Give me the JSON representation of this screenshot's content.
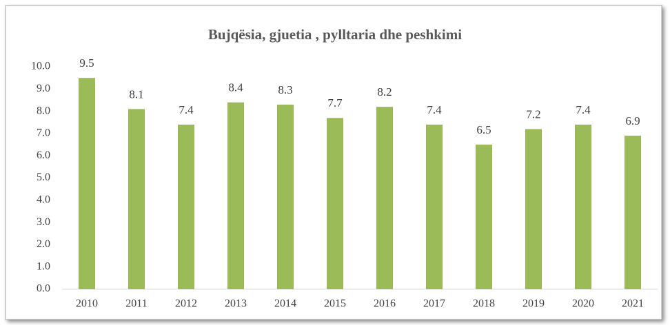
{
  "chart_data": {
    "type": "bar",
    "title": "Bujqësia, gjuetia , pylltaria dhe peshkimi",
    "categories": [
      "2010",
      "2011",
      "2012",
      "2013",
      "2014",
      "2015",
      "2016",
      "2017",
      "2018",
      "2019",
      "2020",
      "2021"
    ],
    "values": [
      9.5,
      8.1,
      7.4,
      8.4,
      8.3,
      7.7,
      8.2,
      7.4,
      6.5,
      7.2,
      7.4,
      6.9
    ],
    "color": "#9bbb59",
    "ylim": [
      0,
      10
    ],
    "yticks": [
      {
        "value": 0,
        "label": "0.0"
      },
      {
        "value": 1,
        "label": "1.0"
      },
      {
        "value": 2,
        "label": "2.0"
      },
      {
        "value": 3,
        "label": "3.0"
      },
      {
        "value": 4,
        "label": "4.0"
      },
      {
        "value": 5,
        "label": "5.0"
      },
      {
        "value": 6,
        "label": "6.0"
      },
      {
        "value": 7,
        "label": "7.0"
      },
      {
        "value": 8,
        "label": "8.0"
      },
      {
        "value": 9,
        "label": "9.0"
      },
      {
        "value": 10,
        "label": "10.0"
      }
    ],
    "grid": false
  }
}
